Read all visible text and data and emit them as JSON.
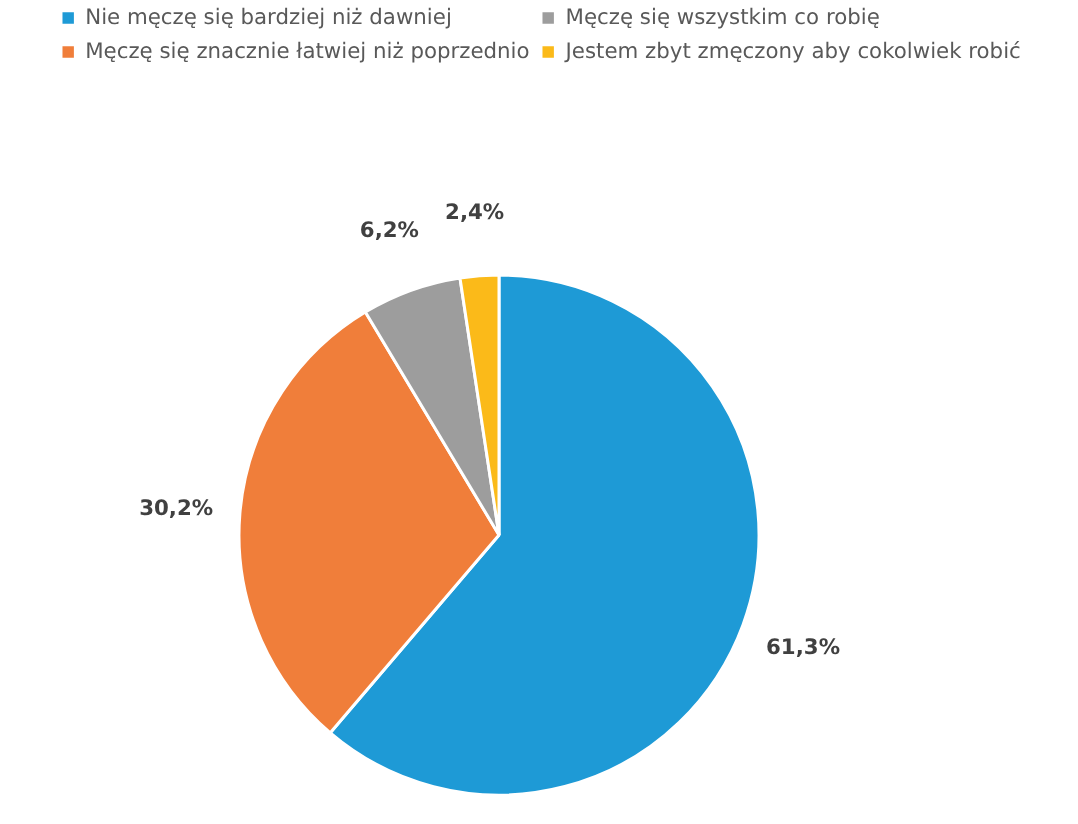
{
  "chart_data": {
    "type": "pie",
    "categories": [
      "Nie męczę się bardziej niż dawniej",
      "Męczę się znacznie łatwiej niż poprzednio",
      "Męczę się wszystkim co robię",
      "Jestem zbyt zmęczony aby cokolwiek robić"
    ],
    "values": [
      61.3,
      30.2,
      6.2,
      2.4
    ],
    "colors": [
      "#1e9ad6",
      "#f07e3a",
      "#9d9d9d",
      "#fbba19"
    ],
    "value_labels": [
      "61,3%",
      "30,2%",
      "6,2%",
      "2,4%"
    ],
    "legend": "top"
  }
}
